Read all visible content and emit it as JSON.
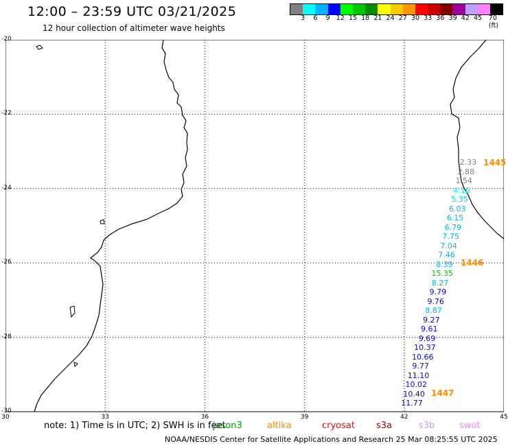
{
  "header": {
    "title": "12:00 – 23:59 UTC 03/21/2025",
    "subtitle": "12 hour collection of altimeter wave heights"
  },
  "colorbar": {
    "colors": [
      "#808080",
      "#00ffff",
      "#00b4ff",
      "#0000ff",
      "#00ff00",
      "#00c800",
      "#008c00",
      "#ffff00",
      "#ffc800",
      "#ff9600",
      "#ff0000",
      "#c80000",
      "#800000",
      "#a000a0",
      "#c0a0ff",
      "#ff80ff",
      "#000000"
    ],
    "labels": [
      "3",
      "6",
      "9",
      "12",
      "15",
      "18",
      "21",
      "24",
      "27",
      "30",
      "33",
      "36",
      "39",
      "42",
      "45",
      "70 (ft)"
    ]
  },
  "map": {
    "lat_labels": [
      "-20",
      "-22",
      "-24",
      "-26",
      "-28",
      "-30"
    ],
    "lon_labels": [
      "30",
      "33",
      "36",
      "39",
      "42",
      "45"
    ],
    "passes": [
      {
        "label": "1445",
        "color": "#ff8c00"
      },
      {
        "label": "1446",
        "color": "#ff8c00"
      },
      {
        "label": "1447",
        "color": "#ff8c00"
      }
    ],
    "swh": [
      {
        "v": "2.33",
        "c": "#808080"
      },
      {
        "v": "2.88",
        "c": "#808080"
      },
      {
        "v": "1.54",
        "c": "#808080"
      },
      {
        "v": "4.16",
        "c": "#00ffff"
      },
      {
        "v": "5.35",
        "c": "#00d2ff"
      },
      {
        "v": "6.03",
        "c": "#00b4ff"
      },
      {
        "v": "6.15",
        "c": "#00b4ff"
      },
      {
        "v": "6.79",
        "c": "#00b4ff"
      },
      {
        "v": "7.75",
        "c": "#00b4ff"
      },
      {
        "v": "7.04",
        "c": "#00b4ff"
      },
      {
        "v": "7.46",
        "c": "#00b4ff"
      },
      {
        "v": "8.39",
        "c": "#00b4ff"
      },
      {
        "v": "15.35",
        "c": "#00c800"
      },
      {
        "v": "8.27",
        "c": "#00b4ff"
      },
      {
        "v": "9.79",
        "c": "#0000ff"
      },
      {
        "v": "9.76",
        "c": "#0000ff"
      },
      {
        "v": "8.87",
        "c": "#00b4ff"
      },
      {
        "v": "9.27",
        "c": "#0000ff"
      },
      {
        "v": "9.61",
        "c": "#0000ff"
      },
      {
        "v": "9.69",
        "c": "#0000ff"
      },
      {
        "v": "10.37",
        "c": "#0000ff"
      },
      {
        "v": "10.66",
        "c": "#0000ff"
      },
      {
        "v": "9.77",
        "c": "#0000ff"
      },
      {
        "v": "11.10",
        "c": "#0000ff"
      },
      {
        "v": "10.02",
        "c": "#0000ff"
      },
      {
        "v": "10.40",
        "c": "#0000ff"
      },
      {
        "v": "11.77",
        "c": "#0000ff"
      }
    ]
  },
  "footer": {
    "note": "note: 1) Time is in UTC; 2) SWH is in feet",
    "satellites": [
      {
        "name": "jason3",
        "color": "#00a000"
      },
      {
        "name": "altika",
        "color": "#ff8c00"
      },
      {
        "name": "cryosat",
        "color": "#ff0000"
      },
      {
        "name": "s3a",
        "color": "#a00000"
      },
      {
        "name": "s3b",
        "color": "#c0a0ff"
      },
      {
        "name": "swot",
        "color": "#ff80ff"
      }
    ],
    "credit": "NOAA/NESDIS Center for Satellite Applications and Research    25 Mar 08:25:55 UTC 2025"
  }
}
